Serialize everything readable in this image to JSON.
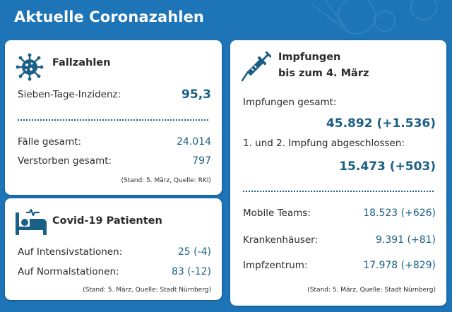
{
  "page_title": "Aktuelle Coronazahlen",
  "colors": {
    "background": "#1d74b6",
    "accent": "#1a5f86",
    "card": "#ffffff"
  },
  "fallzahlen": {
    "icon": "virus-icon",
    "title": "Fallzahlen",
    "incidence_label": "Sieben-Tage-Inzidenz:",
    "incidence_value": "95,3",
    "cases_label": "Fälle gesamt:",
    "cases_value": "24.014",
    "deaths_label": "Verstorben gesamt:",
    "deaths_value": "797",
    "source": "(Stand: 5. März, Quelle: RKI)"
  },
  "patients": {
    "icon": "hospital-bed-icon",
    "title": "Covid-19 Patienten",
    "icu_label": "Auf Intensivstationen:",
    "icu_value": "25 (-4)",
    "normal_label": "Auf Normalstationen:",
    "normal_value": "83 (-12)",
    "source": "(Stand: 5. März, Quelle: Stadt Nürnberg)"
  },
  "vaccinations": {
    "icon": "syringe-icon",
    "title_line1": "Impfungen",
    "title_line2": "bis zum 4. März",
    "total_label": "Impfungen gesamt:",
    "total_value": "45.892 (+1.536)",
    "complete_label": "1. und 2. Impfung abgeschlossen:",
    "complete_value": "15.473 (+503)",
    "mobile_label": "Mobile Teams:",
    "mobile_value": "18.523 (+626)",
    "hospitals_label": "Krankenhäuser:",
    "hospitals_value": "9.391 (+81)",
    "center_label": "Impfzentrum:",
    "center_value": "17.978 (+829)",
    "source": "(Stand: 5. März, Quelle: Stadt Nürnberg)"
  }
}
